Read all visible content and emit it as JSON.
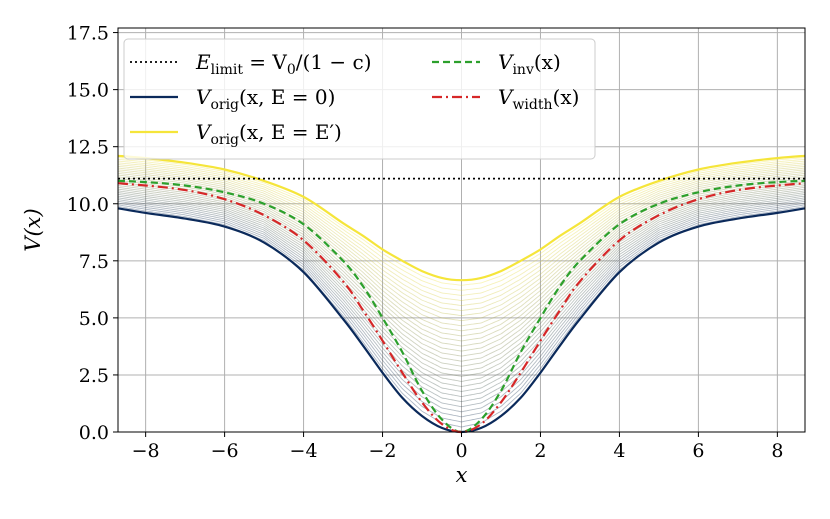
{
  "chart_data": {
    "type": "line",
    "title": "",
    "xlabel": "x",
    "ylabel": "V(x)",
    "xlim": [
      -8.7,
      8.7
    ],
    "ylim": [
      0.0,
      17.7
    ],
    "xticks": [
      -8,
      -6,
      -4,
      -2,
      0,
      2,
      4,
      6,
      8
    ],
    "xtick_labels": [
      "−8",
      "−6",
      "−4",
      "−2",
      "0",
      "2",
      "4",
      "6",
      "8"
    ],
    "yticks": [
      0.0,
      2.5,
      5.0,
      7.5,
      10.0,
      12.5,
      15.0,
      17.5
    ],
    "ytick_labels": [
      "0.0",
      "2.5",
      "5.0",
      "7.5",
      "10.0",
      "12.5",
      "15.0",
      "17.5"
    ],
    "grid": true,
    "legend_position": "upper-left",
    "series": [
      {
        "name": "E_limit = V_0/(1 − c)",
        "color": "#000000",
        "style": "dotted",
        "x": [
          -8.7,
          8.7
        ],
        "y": [
          11.1,
          11.1
        ]
      },
      {
        "name": "V_orig(x, E = 0)",
        "color": "#0b2a5b",
        "style": "solid",
        "x": [
          -8.7,
          -8,
          -7,
          -6,
          -5,
          -4,
          -3,
          -2.5,
          -2,
          -1.5,
          -1,
          -0.5,
          0,
          0.5,
          1,
          1.5,
          2,
          2.5,
          3,
          4,
          5,
          6,
          7,
          8,
          8.7
        ],
        "y": [
          9.8,
          9.6,
          9.35,
          9.0,
          8.3,
          7.0,
          4.95,
          3.8,
          2.6,
          1.5,
          0.7,
          0.18,
          0.0,
          0.18,
          0.7,
          1.5,
          2.6,
          3.8,
          4.95,
          7.0,
          8.3,
          9.0,
          9.35,
          9.6,
          9.8
        ]
      },
      {
        "name": "V_orig(x, E = E′)",
        "color": "#f5e53a",
        "style": "solid",
        "x": [
          -8.7,
          -8,
          -7,
          -6,
          -5,
          -4,
          -3,
          -2.5,
          -2,
          -1.5,
          -1,
          -0.5,
          0,
          0.5,
          1,
          1.5,
          2,
          2.5,
          3,
          4,
          5,
          6,
          7,
          8,
          8.7
        ],
        "y": [
          12.1,
          12.0,
          11.8,
          11.5,
          11.0,
          10.3,
          9.15,
          8.6,
          8.0,
          7.5,
          7.05,
          6.75,
          6.65,
          6.75,
          7.05,
          7.5,
          8.0,
          8.6,
          9.15,
          10.3,
          11.0,
          11.5,
          11.8,
          12.0,
          12.1
        ]
      },
      {
        "name": "V_inv(x)",
        "color": "#2ca02c",
        "style": "dashed",
        "x": [
          -8.7,
          -8,
          -7,
          -6,
          -5,
          -4,
          -3,
          -2.5,
          -2,
          -1.5,
          -1,
          -0.5,
          0,
          0.5,
          1,
          1.5,
          2,
          2.5,
          3,
          4,
          5,
          6,
          7,
          8,
          8.7
        ],
        "y": [
          11.0,
          10.95,
          10.8,
          10.5,
          10.0,
          9.1,
          7.5,
          6.4,
          5.0,
          3.5,
          1.8,
          0.55,
          0.0,
          0.55,
          1.8,
          3.5,
          5.0,
          6.4,
          7.5,
          9.1,
          10.0,
          10.5,
          10.8,
          10.95,
          11.0
        ]
      },
      {
        "name": "V_width(x)",
        "color": "#d62728",
        "style": "dashdot",
        "x": [
          -8.7,
          -8,
          -7,
          -6,
          -5,
          -4,
          -3,
          -2.5,
          -2,
          -1.5,
          -1,
          -0.5,
          0,
          0.5,
          1,
          1.5,
          2,
          2.5,
          3,
          4,
          5,
          6,
          7,
          8,
          8.7
        ],
        "y": [
          10.9,
          10.8,
          10.6,
          10.2,
          9.5,
          8.4,
          6.6,
          5.35,
          4.0,
          2.6,
          1.3,
          0.35,
          0.0,
          0.35,
          1.3,
          2.6,
          4.0,
          5.35,
          6.6,
          8.4,
          9.5,
          10.2,
          10.6,
          10.8,
          10.9
        ]
      }
    ],
    "family_curves": {
      "description_count": 30,
      "from_color": "#0b2a5b",
      "to_color": "#f5e53a"
    }
  },
  "legend": {
    "items": [
      {
        "base": "E",
        "sub": "limit",
        "rest": " = V",
        "sub2": "0",
        "tail": "/(1 − c)"
      },
      {
        "base": "V",
        "sub": "orig",
        "tail": "(x, E = 0)"
      },
      {
        "base": "V",
        "sub": "orig",
        "tail": "(x, E = E′)"
      },
      {
        "base": "V",
        "sub": "inv",
        "tail": "(x)"
      },
      {
        "base": "V",
        "sub": "width",
        "tail": "(x)"
      }
    ]
  }
}
